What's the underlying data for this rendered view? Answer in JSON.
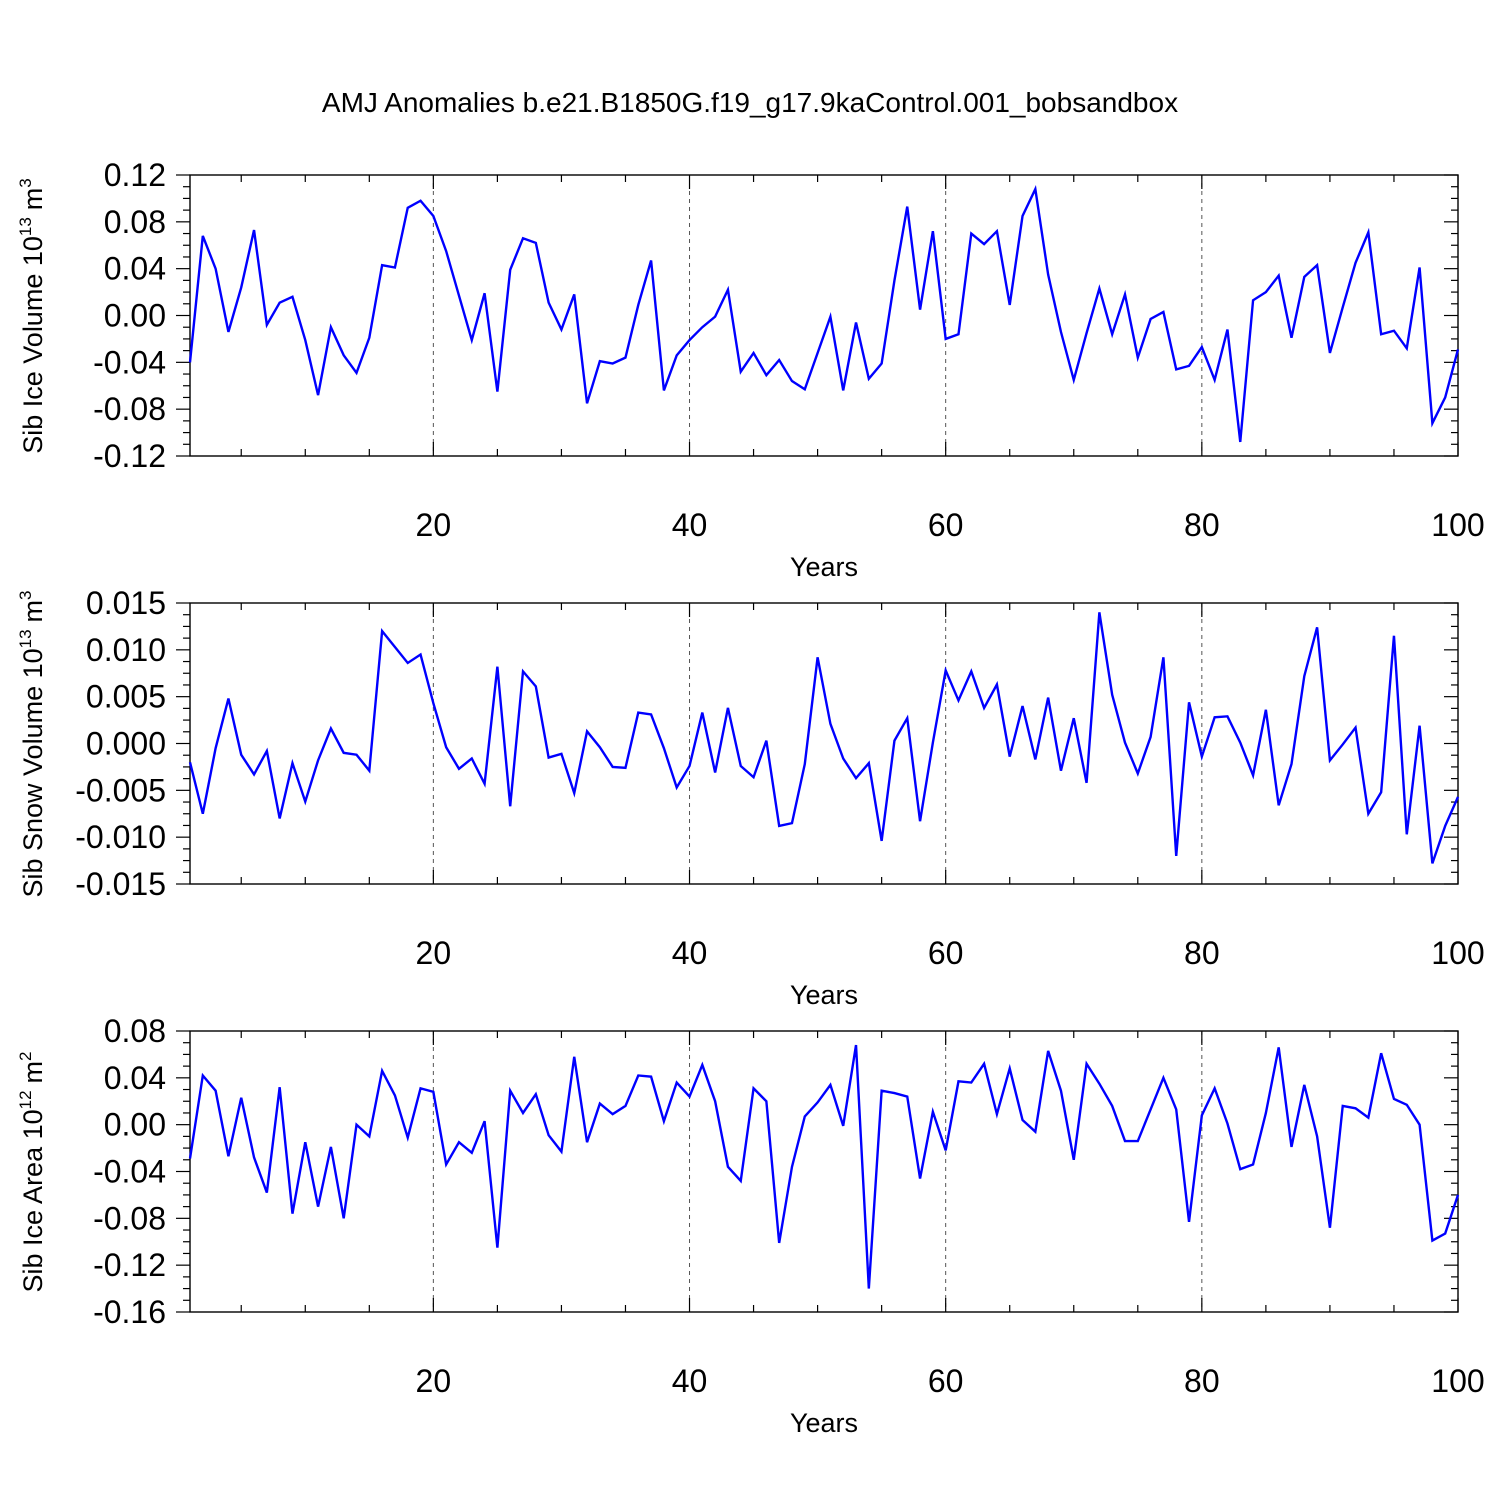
{
  "title": "AMJ Anomalies b.e21.B1850G.f19_g17.9kaControl.001_bobsandbox",
  "chart_data": [
    {
      "type": "line",
      "ylabel": "Sib Ice Volume 10",
      "ylabel_exp": "13",
      "ylabel_unit": "m",
      "ylabel_unit_exp": "3",
      "xlabel": "Years",
      "xlim": [
        1,
        100
      ],
      "ylim": [
        -0.12,
        0.12
      ],
      "xticks": [
        20,
        40,
        60,
        80,
        100
      ],
      "xtick_labels": [
        "20",
        "40",
        "60",
        "80",
        "100"
      ],
      "yticks": [
        -0.12,
        -0.08,
        -0.04,
        0.0,
        0.04,
        0.08,
        0.12
      ],
      "ytick_labels": [
        "-0.12",
        "-0.08",
        "-0.04",
        "0.00",
        "0.04",
        "0.08",
        "0.12"
      ],
      "grid": "vertical dashed at 20, 40, 60, 80",
      "color": "#0000ff",
      "values": [
        -0.04,
        0.068,
        0.04,
        -0.014,
        0.024,
        0.073,
        -0.008,
        0.011,
        0.016,
        -0.021,
        -0.068,
        -0.01,
        -0.034,
        -0.049,
        -0.019,
        0.043,
        0.041,
        0.092,
        0.098,
        0.085,
        0.055,
        0.017,
        -0.021,
        0.019,
        -0.065,
        0.039,
        0.066,
        0.062,
        0.011,
        -0.012,
        0.018,
        -0.075,
        -0.039,
        -0.041,
        -0.036,
        0.009,
        0.047,
        -0.064,
        -0.034,
        -0.021,
        -0.01,
        -0.001,
        0.022,
        -0.048,
        -0.032,
        -0.051,
        -0.038,
        -0.056,
        -0.063,
        -0.032,
        -0.001,
        -0.064,
        -0.006,
        -0.054,
        -0.041,
        0.03,
        0.093,
        0.005,
        0.072,
        -0.02,
        -0.016,
        0.07,
        0.061,
        0.072,
        0.009,
        0.085,
        0.108,
        0.035,
        -0.014,
        -0.055,
        -0.015,
        0.023,
        -0.016,
        0.018,
        -0.036,
        -0.003,
        0.003,
        -0.046,
        -0.043,
        -0.027,
        -0.055,
        -0.012,
        -0.108,
        0.013,
        0.02,
        0.034,
        -0.019,
        0.033,
        0.043,
        -0.032,
        0.007,
        0.045,
        0.071,
        -0.016,
        -0.013,
        -0.028,
        0.041,
        -0.092,
        -0.07,
        -0.029
      ]
    },
    {
      "type": "line",
      "ylabel": "Sib Snow Volume 10",
      "ylabel_exp": "13",
      "ylabel_unit": "m",
      "ylabel_unit_exp": "3",
      "xlabel": "Years",
      "xlim": [
        1,
        100
      ],
      "ylim": [
        -0.015,
        0.015
      ],
      "xticks": [
        20,
        40,
        60,
        80,
        100
      ],
      "xtick_labels": [
        "20",
        "40",
        "60",
        "80",
        "100"
      ],
      "yticks": [
        -0.015,
        -0.01,
        -0.005,
        0.0,
        0.005,
        0.01,
        0.015
      ],
      "ytick_labels": [
        "-0.015",
        "-0.010",
        "-0.005",
        "0.000",
        "0.005",
        "0.010",
        "0.015"
      ],
      "grid": "vertical dashed at 20, 40, 60, 80",
      "color": "#0000ff",
      "values": [
        -0.002,
        -0.0075,
        -0.0005,
        0.0048,
        -0.0012,
        -0.0033,
        -0.0008,
        -0.008,
        -0.0021,
        -0.0062,
        -0.0018,
        0.0016,
        -0.001,
        -0.0012,
        -0.0029,
        0.012,
        0.0103,
        0.0086,
        0.0095,
        0.0043,
        -0.0004,
        -0.0027,
        -0.0016,
        -0.0043,
        0.0082,
        -0.0067,
        0.0077,
        0.0061,
        -0.0015,
        -0.0011,
        -0.0053,
        0.0013,
        -0.0004,
        -0.0025,
        -0.0026,
        0.0033,
        0.0031,
        -0.0005,
        -0.0047,
        -0.0024,
        0.0033,
        -0.0031,
        0.0038,
        -0.0024,
        -0.0036,
        0.0003,
        -0.0088,
        -0.0085,
        -0.0022,
        0.0092,
        0.0021,
        -0.0016,
        -0.0037,
        -0.0021,
        -0.0104,
        0.0003,
        0.0027,
        -0.0083,
        0.0001,
        0.0078,
        0.0046,
        0.0077,
        0.0038,
        0.0063,
        -0.0014,
        0.004,
        -0.0017,
        0.0049,
        -0.0029,
        0.0027,
        -0.0042,
        0.014,
        0.0052,
        0.0001,
        -0.0032,
        0.0007,
        0.0092,
        -0.012,
        0.0044,
        -0.0014,
        0.0028,
        0.0029,
        0.0001,
        -0.0034,
        0.0036,
        -0.0066,
        -0.0022,
        0.0072,
        0.0124,
        -0.0018,
        -0.0001,
        0.0017,
        -0.0075,
        -0.0052,
        0.0115,
        -0.0097,
        0.0019,
        -0.0128,
        -0.0088,
        -0.0057
      ]
    },
    {
      "type": "line",
      "ylabel": "Sib Ice Area 10",
      "ylabel_exp": "12",
      "ylabel_unit": "m",
      "ylabel_unit_exp": "2",
      "xlabel": "Years",
      "xlim": [
        1,
        100
      ],
      "ylim": [
        -0.16,
        0.08
      ],
      "xticks": [
        20,
        40,
        60,
        80,
        100
      ],
      "xtick_labels": [
        "20",
        "40",
        "60",
        "80",
        "100"
      ],
      "yticks": [
        -0.16,
        -0.12,
        -0.08,
        -0.04,
        0.0,
        0.04,
        0.08
      ],
      "ytick_labels": [
        "-0.16",
        "-0.12",
        "-0.08",
        "-0.04",
        "0.00",
        "0.04",
        "0.08"
      ],
      "grid": "vertical dashed at 20, 40, 60, 80",
      "color": "#0000ff",
      "values": [
        -0.029,
        0.042,
        0.029,
        -0.027,
        0.023,
        -0.028,
        -0.058,
        0.032,
        -0.076,
        -0.015,
        -0.07,
        -0.019,
        -0.08,
        0.0,
        -0.01,
        0.046,
        0.025,
        -0.011,
        0.031,
        0.028,
        -0.034,
        -0.015,
        -0.024,
        0.003,
        -0.105,
        0.029,
        0.01,
        0.026,
        -0.009,
        -0.023,
        0.058,
        -0.015,
        0.018,
        0.009,
        0.016,
        0.042,
        0.041,
        0.003,
        0.036,
        0.024,
        0.051,
        0.02,
        -0.036,
        -0.048,
        0.031,
        0.02,
        -0.101,
        -0.036,
        0.007,
        0.019,
        0.034,
        -0.001,
        0.068,
        -0.14,
        0.029,
        0.027,
        0.024,
        -0.046,
        0.011,
        -0.022,
        0.037,
        0.036,
        0.052,
        0.009,
        0.048,
        0.004,
        -0.006,
        0.063,
        0.029,
        -0.03,
        0.052,
        0.035,
        0.016,
        -0.014,
        -0.014,
        0.013,
        0.04,
        0.013,
        -0.083,
        0.008,
        0.031,
        0.001,
        -0.038,
        -0.034,
        0.01,
        0.066,
        -0.019,
        0.034,
        -0.01,
        -0.088,
        0.016,
        0.014,
        0.006,
        0.061,
        0.022,
        0.017,
        0.0,
        -0.099,
        -0.093,
        -0.06
      ]
    }
  ]
}
